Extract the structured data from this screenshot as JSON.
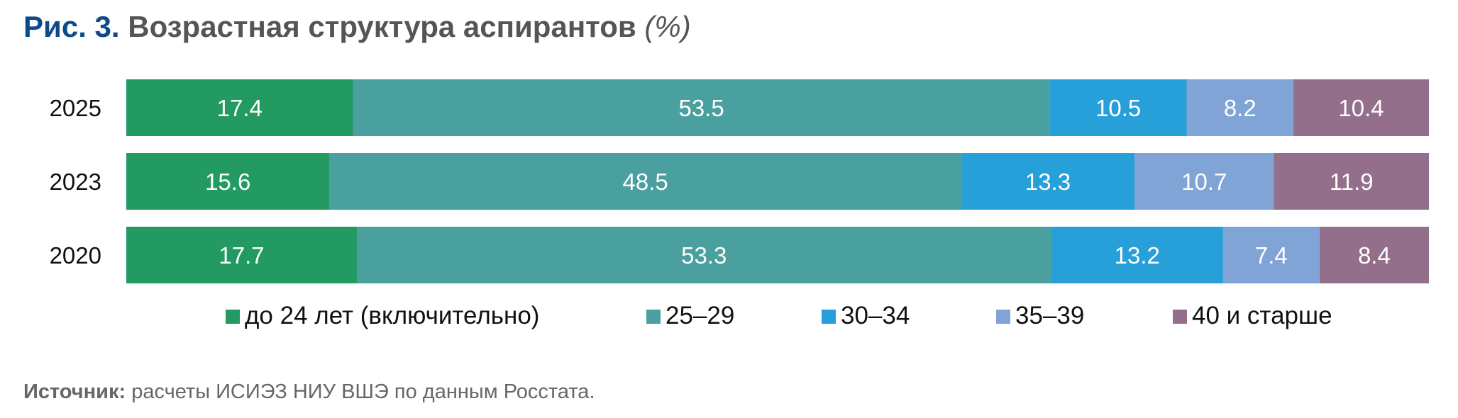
{
  "title": {
    "figure": "Рис. 3.",
    "text": "Возрастная структура аспирантов",
    "unit": "(%)"
  },
  "source": {
    "label": "Источник:",
    "text": "расчеты ИСИЭЗ НИУ ВШЭ по данным Росстата."
  },
  "chart_data": {
    "type": "bar",
    "orientation": "horizontal",
    "stacked": true,
    "categories": [
      "2025",
      "2023",
      "2020"
    ],
    "series": [
      {
        "name": "до 24 лет (включительно)",
        "color": "#229a62",
        "values": [
          17.4,
          15.6,
          17.7
        ]
      },
      {
        "name": "25–29",
        "color": "#4aa09e",
        "values": [
          53.5,
          48.5,
          53.3
        ]
      },
      {
        "name": "30–34",
        "color": "#279fd9",
        "values": [
          10.5,
          13.3,
          13.2
        ]
      },
      {
        "name": "35–39",
        "color": "#80a4d6",
        "values": [
          8.2,
          10.7,
          7.4
        ]
      },
      {
        "name": "40 и старше",
        "color": "#946f8c",
        "values": [
          10.4,
          11.9,
          8.4
        ]
      }
    ],
    "legend_position": "bottom",
    "grid": false
  }
}
